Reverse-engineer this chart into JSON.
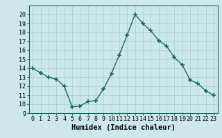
{
  "x": [
    0,
    1,
    2,
    3,
    4,
    5,
    6,
    7,
    8,
    9,
    10,
    11,
    12,
    13,
    14,
    15,
    16,
    17,
    18,
    19,
    20,
    21,
    22,
    23
  ],
  "y": [
    14,
    13.5,
    13,
    12.8,
    12,
    9.7,
    9.8,
    10.3,
    10.4,
    11.7,
    13.4,
    15.5,
    17.7,
    20.0,
    19.0,
    18.2,
    17.1,
    16.5,
    15.2,
    14.4,
    12.7,
    12.3,
    11.5,
    11.0
  ],
  "line_color": "#1a6b5a",
  "marker": "+",
  "marker_size": 5,
  "bg_color": "#cce8ea",
  "grid_color": "#b0d4d8",
  "xlabel": "Humidex (Indice chaleur)",
  "ylim": [
    9,
    21
  ],
  "xlim": [
    -0.5,
    23.5
  ],
  "yticks": [
    9,
    10,
    11,
    12,
    13,
    14,
    15,
    16,
    17,
    18,
    19,
    20
  ],
  "xticks": [
    0,
    1,
    2,
    3,
    4,
    5,
    6,
    7,
    8,
    9,
    10,
    11,
    12,
    13,
    14,
    15,
    16,
    17,
    18,
    19,
    20,
    21,
    22,
    23
  ],
  "xlabel_fontsize": 7.5,
  "tick_fontsize": 6.0
}
